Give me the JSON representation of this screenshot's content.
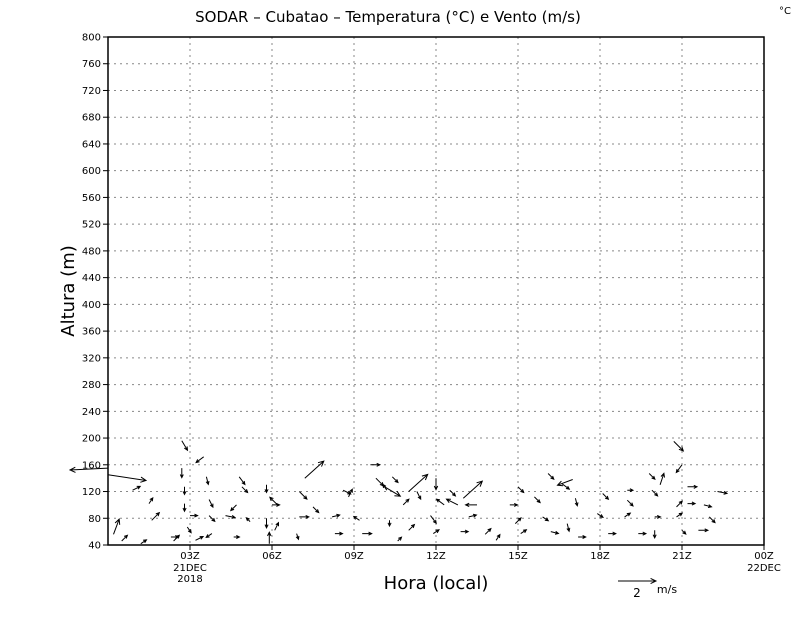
{
  "chart_data": {
    "type": "vector",
    "title": "SODAR – Cubatao – Temperatura (°C) e Vento (m/s)",
    "corner_unit": "°C",
    "xlabel": "Hora (local)",
    "ylabel": "Altura (m)",
    "x_hours_range": [
      0,
      24
    ],
    "ylim": [
      40,
      800
    ],
    "y_ticks": [
      40,
      80,
      120,
      160,
      200,
      240,
      280,
      320,
      360,
      400,
      440,
      480,
      520,
      560,
      600,
      640,
      680,
      720,
      760,
      800
    ],
    "x_ticks": [
      {
        "hour": 3,
        "label": "03Z",
        "sub1": "21DEC",
        "sub2": "2018"
      },
      {
        "hour": 6,
        "label": "06Z",
        "sub1": "",
        "sub2": ""
      },
      {
        "hour": 9,
        "label": "09Z",
        "sub1": "",
        "sub2": ""
      },
      {
        "hour": 12,
        "label": "12Z",
        "sub1": "",
        "sub2": ""
      },
      {
        "hour": 15,
        "label": "15Z",
        "sub1": "",
        "sub2": ""
      },
      {
        "hour": 18,
        "label": "18Z",
        "sub1": "",
        "sub2": ""
      },
      {
        "hour": 21,
        "label": "21Z",
        "sub1": "",
        "sub2": ""
      },
      {
        "hour": 24,
        "label": "00Z",
        "sub1": "22DEC",
        "sub2": ""
      }
    ],
    "grid": true,
    "reference_vector": {
      "speed": 2,
      "label": "2",
      "unit": "m/s"
    },
    "vectors": [
      {
        "t": 0.0,
        "z": 155,
        "u": -2.0,
        "v": -0.1
      },
      {
        "t": 0.0,
        "z": 145,
        "u": 2.0,
        "v": -0.3
      },
      {
        "t": 0.2,
        "z": 56,
        "u": 0.3,
        "v": 0.8
      },
      {
        "t": 0.5,
        "z": 46,
        "u": 0.3,
        "v": 0.3
      },
      {
        "t": 0.9,
        "z": 122,
        "u": 0.4,
        "v": 0.2
      },
      {
        "t": 1.2,
        "z": 42,
        "u": 0.3,
        "v": 0.2
      },
      {
        "t": 1.5,
        "z": 102,
        "u": 0.2,
        "v": 0.3
      },
      {
        "t": 1.6,
        "z": 77,
        "u": 0.4,
        "v": 0.4
      },
      {
        "t": 2.3,
        "z": 52,
        "u": 0.4,
        "v": 0.0
      },
      {
        "t": 2.4,
        "z": 46,
        "u": 0.3,
        "v": 0.3
      },
      {
        "t": 2.7,
        "z": 196,
        "u": 0.3,
        "v": -0.5
      },
      {
        "t": 2.7,
        "z": 155,
        "u": 0.0,
        "v": -0.5
      },
      {
        "t": 2.8,
        "z": 127,
        "u": 0.0,
        "v": -0.4
      },
      {
        "t": 2.8,
        "z": 102,
        "u": 0.0,
        "v": -0.4
      },
      {
        "t": 2.9,
        "z": 67,
        "u": 0.2,
        "v": -0.3
      },
      {
        "t": 3.0,
        "z": 84,
        "u": 0.4,
        "v": 0.0
      },
      {
        "t": 3.2,
        "z": 47,
        "u": 0.4,
        "v": 0.2
      },
      {
        "t": 3.5,
        "z": 172,
        "u": -0.4,
        "v": -0.3
      },
      {
        "t": 3.6,
        "z": 142,
        "u": 0.1,
        "v": -0.4
      },
      {
        "t": 3.7,
        "z": 108,
        "u": 0.2,
        "v": -0.4
      },
      {
        "t": 3.7,
        "z": 84,
        "u": 0.3,
        "v": -0.3
      },
      {
        "t": 3.8,
        "z": 57,
        "u": -0.3,
        "v": -0.2
      },
      {
        "t": 4.3,
        "z": 84,
        "u": 0.5,
        "v": -0.1
      },
      {
        "t": 4.6,
        "z": 52,
        "u": 0.3,
        "v": 0.0
      },
      {
        "t": 4.7,
        "z": 100,
        "u": -0.3,
        "v": -0.3
      },
      {
        "t": 4.8,
        "z": 142,
        "u": 0.3,
        "v": -0.4
      },
      {
        "t": 4.9,
        "z": 127,
        "u": 0.3,
        "v": -0.3
      },
      {
        "t": 5.2,
        "z": 75,
        "u": -0.2,
        "v": 0.2
      },
      {
        "t": 5.8,
        "z": 130,
        "u": 0.0,
        "v": -0.4
      },
      {
        "t": 5.8,
        "z": 80,
        "u": 0.0,
        "v": -0.5
      },
      {
        "t": 5.9,
        "z": 42,
        "u": 0.0,
        "v": 0.6
      },
      {
        "t": 6.0,
        "z": 100,
        "u": 0.4,
        "v": 0.0
      },
      {
        "t": 6.1,
        "z": 62,
        "u": 0.2,
        "v": 0.4
      },
      {
        "t": 6.2,
        "z": 100,
        "u": -0.4,
        "v": 0.4
      },
      {
        "t": 6.9,
        "z": 57,
        "u": 0.1,
        "v": -0.3
      },
      {
        "t": 7.0,
        "z": 120,
        "u": 0.4,
        "v": -0.4
      },
      {
        "t": 7.0,
        "z": 82,
        "u": 0.5,
        "v": 0.0
      },
      {
        "t": 7.2,
        "z": 140,
        "u": 1.0,
        "v": 0.9
      },
      {
        "t": 7.5,
        "z": 97,
        "u": 0.3,
        "v": -0.3
      },
      {
        "t": 8.2,
        "z": 82,
        "u": 0.4,
        "v": 0.1
      },
      {
        "t": 8.3,
        "z": 57,
        "u": 0.4,
        "v": 0.0
      },
      {
        "t": 8.6,
        "z": 122,
        "u": 0.4,
        "v": -0.2
      },
      {
        "t": 8.8,
        "z": 112,
        "u": 0.2,
        "v": 0.4
      },
      {
        "t": 9.2,
        "z": 77,
        "u": -0.3,
        "v": 0.2
      },
      {
        "t": 9.3,
        "z": 57,
        "u": 0.5,
        "v": 0.0
      },
      {
        "t": 9.6,
        "z": 160,
        "u": 0.5,
        "v": 0.0
      },
      {
        "t": 9.8,
        "z": 140,
        "u": 0.4,
        "v": -0.4
      },
      {
        "t": 10.0,
        "z": 130,
        "u": 1.0,
        "v": -0.6
      },
      {
        "t": 10.2,
        "z": 122,
        "u": -0.2,
        "v": 0.3
      },
      {
        "t": 10.3,
        "z": 77,
        "u": 0.0,
        "v": -0.3
      },
      {
        "t": 10.4,
        "z": 142,
        "u": 0.3,
        "v": -0.3
      },
      {
        "t": 10.6,
        "z": 46,
        "u": 0.2,
        "v": 0.2
      },
      {
        "t": 10.8,
        "z": 100,
        "u": 0.3,
        "v": 0.3
      },
      {
        "t": 11.0,
        "z": 62,
        "u": 0.3,
        "v": 0.3
      },
      {
        "t": 11.0,
        "z": 120,
        "u": 1.0,
        "v": 0.9
      },
      {
        "t": 11.3,
        "z": 120,
        "u": 0.2,
        "v": -0.4
      },
      {
        "t": 11.8,
        "z": 84,
        "u": 0.3,
        "v": -0.4
      },
      {
        "t": 11.9,
        "z": 57,
        "u": 0.3,
        "v": 0.2
      },
      {
        "t": 12.0,
        "z": 140,
        "u": 0.0,
        "v": -0.6
      },
      {
        "t": 12.3,
        "z": 100,
        "u": -0.4,
        "v": 0.3
      },
      {
        "t": 12.5,
        "z": 122,
        "u": 0.3,
        "v": -0.3
      },
      {
        "t": 12.8,
        "z": 100,
        "u": -0.6,
        "v": 0.3
      },
      {
        "t": 12.9,
        "z": 60,
        "u": 0.4,
        "v": 0.0
      },
      {
        "t": 13.0,
        "z": 110,
        "u": 1.0,
        "v": 0.9
      },
      {
        "t": 13.2,
        "z": 82,
        "u": 0.4,
        "v": 0.1
      },
      {
        "t": 13.5,
        "z": 100,
        "u": -0.6,
        "v": 0.0
      },
      {
        "t": 13.8,
        "z": 56,
        "u": 0.3,
        "v": 0.3
      },
      {
        "t": 14.2,
        "z": 47,
        "u": 0.2,
        "v": 0.3
      },
      {
        "t": 14.7,
        "z": 100,
        "u": 0.4,
        "v": 0.0
      },
      {
        "t": 14.9,
        "z": 72,
        "u": 0.3,
        "v": 0.3
      },
      {
        "t": 15.0,
        "z": 127,
        "u": 0.3,
        "v": -0.3
      },
      {
        "t": 15.1,
        "z": 57,
        "u": 0.3,
        "v": 0.2
      },
      {
        "t": 15.6,
        "z": 112,
        "u": 0.3,
        "v": -0.3
      },
      {
        "t": 15.9,
        "z": 82,
        "u": 0.3,
        "v": -0.2
      },
      {
        "t": 16.1,
        "z": 147,
        "u": 0.3,
        "v": -0.3
      },
      {
        "t": 16.2,
        "z": 60,
        "u": 0.4,
        "v": -0.1
      },
      {
        "t": 16.6,
        "z": 132,
        "u": 0.4,
        "v": -0.3
      },
      {
        "t": 16.8,
        "z": 72,
        "u": 0.1,
        "v": -0.4
      },
      {
        "t": 17.0,
        "z": 138,
        "u": -0.8,
        "v": -0.3
      },
      {
        "t": 17.1,
        "z": 110,
        "u": 0.1,
        "v": -0.4
      },
      {
        "t": 17.2,
        "z": 52,
        "u": 0.4,
        "v": 0.0
      },
      {
        "t": 17.9,
        "z": 87,
        "u": 0.3,
        "v": -0.2
      },
      {
        "t": 18.1,
        "z": 117,
        "u": 0.3,
        "v": -0.3
      },
      {
        "t": 18.3,
        "z": 57,
        "u": 0.4,
        "v": 0.0
      },
      {
        "t": 18.9,
        "z": 82,
        "u": 0.3,
        "v": 0.2
      },
      {
        "t": 19.0,
        "z": 107,
        "u": 0.3,
        "v": -0.3
      },
      {
        "t": 19.0,
        "z": 122,
        "u": 0.3,
        "v": 0.0
      },
      {
        "t": 19.4,
        "z": 57,
        "u": 0.4,
        "v": 0.0
      },
      {
        "t": 19.8,
        "z": 147,
        "u": 0.3,
        "v": -0.3
      },
      {
        "t": 19.9,
        "z": 122,
        "u": 0.3,
        "v": -0.3
      },
      {
        "t": 20.0,
        "z": 82,
        "u": 0.3,
        "v": 0.0
      },
      {
        "t": 20.0,
        "z": 62,
        "u": 0.0,
        "v": -0.4
      },
      {
        "t": 20.2,
        "z": 130,
        "u": 0.2,
        "v": 0.6
      },
      {
        "t": 20.8,
        "z": 97,
        "u": 0.3,
        "v": 0.3
      },
      {
        "t": 21.0,
        "z": 62,
        "u": 0.2,
        "v": -0.2
      },
      {
        "t": 20.8,
        "z": 82,
        "u": 0.3,
        "v": 0.2
      },
      {
        "t": 21.0,
        "z": 160,
        "u": -0.3,
        "v": -0.4
      },
      {
        "t": 20.7,
        "z": 195,
        "u": 0.5,
        "v": -0.5
      },
      {
        "t": 21.2,
        "z": 127,
        "u": 0.5,
        "v": 0.0
      },
      {
        "t": 21.2,
        "z": 102,
        "u": 0.4,
        "v": 0.0
      },
      {
        "t": 21.6,
        "z": 62,
        "u": 0.5,
        "v": 0.0
      },
      {
        "t": 21.8,
        "z": 100,
        "u": 0.4,
        "v": -0.1
      },
      {
        "t": 22.0,
        "z": 82,
        "u": 0.3,
        "v": -0.3
      },
      {
        "t": 22.3,
        "z": 120,
        "u": 0.5,
        "v": -0.1
      }
    ]
  }
}
